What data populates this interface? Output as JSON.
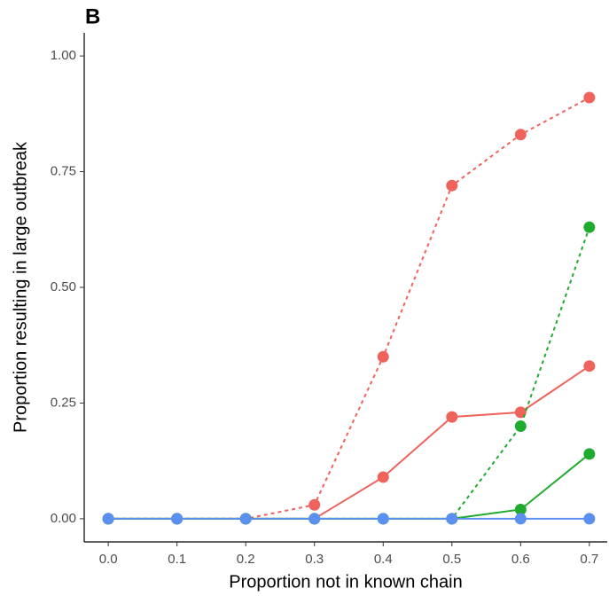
{
  "chart_data": {
    "type": "line",
    "panel_label": "B",
    "xlabel": "Proportion not in known chain",
    "ylabel": "Proportion resulting in large outbreak",
    "x": [
      0,
      0.1,
      0.2,
      0.3,
      0.4,
      0.5,
      0.6,
      0.7
    ],
    "series": [
      {
        "color": "#f0625c",
        "linestyle": "dotted",
        "values": [
          0,
          0,
          0,
          0.03,
          0.35,
          0.72,
          0.83,
          0.91
        ]
      },
      {
        "color": "#f0625c",
        "linestyle": "solid",
        "values": [
          0,
          0,
          0,
          0,
          0.09,
          0.22,
          0.23,
          0.33
        ]
      },
      {
        "color": "#1eab2e",
        "linestyle": "dotted",
        "values": [
          0,
          0,
          0,
          0,
          0,
          0,
          0.2,
          0.63
        ]
      },
      {
        "color": "#1eab2e",
        "linestyle": "solid",
        "values": [
          0,
          0,
          0,
          0,
          0,
          0,
          0.02,
          0.14
        ]
      },
      {
        "color": "#5b8ff0",
        "linestyle": "solid",
        "values": [
          0,
          0,
          0,
          0,
          0,
          0,
          0,
          0
        ]
      }
    ],
    "xlim": [
      -0.035,
      0.726
    ],
    "ylim": [
      -0.05,
      1.05
    ],
    "xticks": [
      {
        "value": 0,
        "label": "0.0"
      },
      {
        "value": 0.1,
        "label": "0.1"
      },
      {
        "value": 0.2,
        "label": "0.2"
      },
      {
        "value": 0.3,
        "label": "0.3"
      },
      {
        "value": 0.4,
        "label": "0.4"
      },
      {
        "value": 0.5,
        "label": "0.5"
      },
      {
        "value": 0.6,
        "label": "0.6"
      },
      {
        "value": 0.7,
        "label": "0.7"
      }
    ],
    "yticks": [
      {
        "value": 0,
        "label": "0.00"
      },
      {
        "value": 0.25,
        "label": "0.25"
      },
      {
        "value": 0.5,
        "label": "0.50"
      },
      {
        "value": 0.75,
        "label": "0.75"
      },
      {
        "value": 1,
        "label": "1.00"
      }
    ]
  }
}
